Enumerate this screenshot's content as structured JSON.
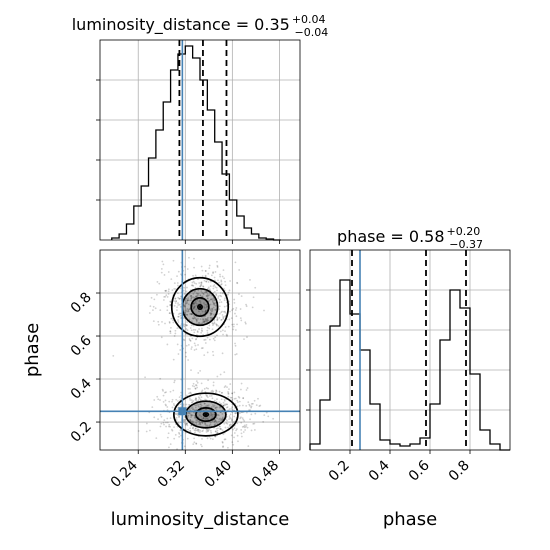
{
  "chart_data": [
    {
      "type": "histogram",
      "panel": "luminosity_distance-marginal",
      "title": {
        "text": "luminosity_distance = 0.35",
        "sup": "+0.04",
        "sub": "−0.04"
      },
      "x_param": "luminosity_distance",
      "xlim": [
        0.175,
        0.515
      ],
      "ylim": [
        0,
        1.0
      ],
      "bin_edges": [
        0.195,
        0.2075,
        0.22,
        0.2325,
        0.245,
        0.2575,
        0.27,
        0.2825,
        0.295,
        0.3075,
        0.32,
        0.3325,
        0.345,
        0.3575,
        0.37,
        0.3825,
        0.395,
        0.4075,
        0.42,
        0.4325,
        0.445,
        0.4575,
        0.47,
        0.4825
      ],
      "counts": [
        0.01,
        0.03,
        0.08,
        0.17,
        0.27,
        0.41,
        0.55,
        0.69,
        0.85,
        0.93,
        0.97,
        0.91,
        0.8,
        0.65,
        0.49,
        0.33,
        0.2,
        0.12,
        0.06,
        0.03,
        0.01,
        0.005,
        0.0
      ],
      "quantiles": [
        0.31,
        0.35,
        0.39
      ],
      "truth": 0.315,
      "grid": true,
      "ticks": [
        0.24,
        0.32,
        0.4,
        0.48
      ]
    },
    {
      "type": "histogram",
      "panel": "phase-marginal",
      "title": {
        "text": "phase = 0.58",
        "sup": "+0.20",
        "sub": "−0.37"
      },
      "x_param": "phase",
      "xlim": [
        0.0,
        1.0
      ],
      "ylim": [
        0,
        1.0
      ],
      "bin_edges": [
        0.0,
        0.05,
        0.1,
        0.15,
        0.2,
        0.25,
        0.3,
        0.35,
        0.4,
        0.45,
        0.5,
        0.55,
        0.6,
        0.65,
        0.7,
        0.75,
        0.8,
        0.85,
        0.9,
        0.95,
        1.0
      ],
      "counts": [
        0.03,
        0.25,
        0.62,
        0.85,
        0.68,
        0.5,
        0.23,
        0.05,
        0.03,
        0.02,
        0.03,
        0.06,
        0.23,
        0.55,
        0.8,
        0.71,
        0.38,
        0.1,
        0.03,
        0.0
      ],
      "quantiles": [
        0.21,
        0.58,
        0.78
      ],
      "truth": 0.25,
      "grid": true,
      "ticks": [
        0.2,
        0.4,
        0.6,
        0.8
      ]
    },
    {
      "type": "contour",
      "panel": "2d-posterior",
      "x_param": "luminosity_distance",
      "y_param": "phase",
      "xlabel": "luminosity_distance",
      "ylabel": "phase",
      "xlim": [
        0.175,
        0.515
      ],
      "ylim": [
        0.07,
        1.0
      ],
      "x_ticks": [
        0.24,
        0.32,
        0.4,
        0.48
      ],
      "y_ticks": [
        0.2,
        0.4,
        0.6,
        0.8
      ],
      "x_tick_labels": [
        "0.24",
        "0.32",
        "0.40",
        "0.48"
      ],
      "y_tick_labels": [
        "0.2",
        "0.4",
        "0.6",
        "0.8"
      ],
      "truth": {
        "x": 0.315,
        "y": 0.25
      },
      "modes": [
        {
          "x": 0.345,
          "y": 0.735,
          "sx": 0.03,
          "sy": 0.085,
          "levels": [
            0.12,
            0.5,
            1.0,
            1.6
          ],
          "shade": [
            0.25,
            0.45,
            0.6
          ]
        },
        {
          "x": 0.355,
          "y": 0.235,
          "sx": 0.034,
          "sy": 0.062,
          "levels": [
            0.12,
            0.5,
            1.0,
            1.6
          ],
          "shade": [
            0.25,
            0.45,
            0.6
          ]
        }
      ],
      "grid": true
    }
  ],
  "colors": {
    "truth": "#4682b4",
    "grid": "#b0b0b0",
    "histogram": "#000000",
    "contour": "#000000"
  },
  "labels": {
    "bottom_left_x": "luminosity_distance",
    "bottom_right_x": "phase",
    "left_y": "phase"
  }
}
